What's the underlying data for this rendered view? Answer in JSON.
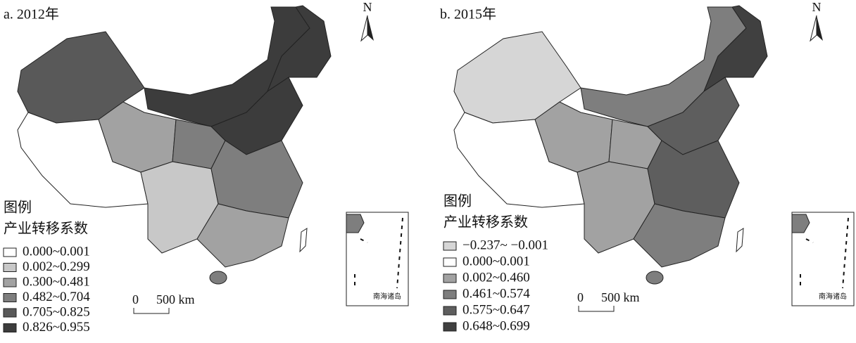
{
  "panels": [
    {
      "title": "a. 2012年",
      "north": "N",
      "inset_label": "南海诸岛",
      "scale": {
        "zero": "0",
        "label": "500 km"
      },
      "legend": {
        "title": "图例",
        "subtitle": "产业转移系数",
        "items": [
          {
            "label": "0.000~0.001",
            "color": "#ffffff"
          },
          {
            "label": "0.002~0.299",
            "color": "#c8c8c8"
          },
          {
            "label": "0.300~0.481",
            "color": "#a2a2a2"
          },
          {
            "label": "0.482~0.704",
            "color": "#7e7e7e"
          },
          {
            "label": "0.705~0.825",
            "color": "#595959"
          },
          {
            "label": "0.826~0.955",
            "color": "#3c3c3c"
          }
        ]
      }
    },
    {
      "title": "b. 2015年",
      "north": "N",
      "inset_label": "南海诸岛",
      "scale": {
        "zero": "0",
        "label": "500 km"
      },
      "legend": {
        "title": "图例",
        "subtitle": "产业转移系数",
        "items": [
          {
            "label": "−0.237~ −0.001",
            "color": "#d6d6d6"
          },
          {
            "label": "0.000~0.001",
            "color": "#ffffff"
          },
          {
            "label": "0.002~0.460",
            "color": "#a2a2a2"
          },
          {
            "label": "0.461~0.574",
            "color": "#7e7e7e"
          },
          {
            "label": "0.575~0.647",
            "color": "#5e5e5e"
          },
          {
            "label": "0.648~0.699",
            "color": "#404040"
          }
        ]
      }
    }
  ]
}
